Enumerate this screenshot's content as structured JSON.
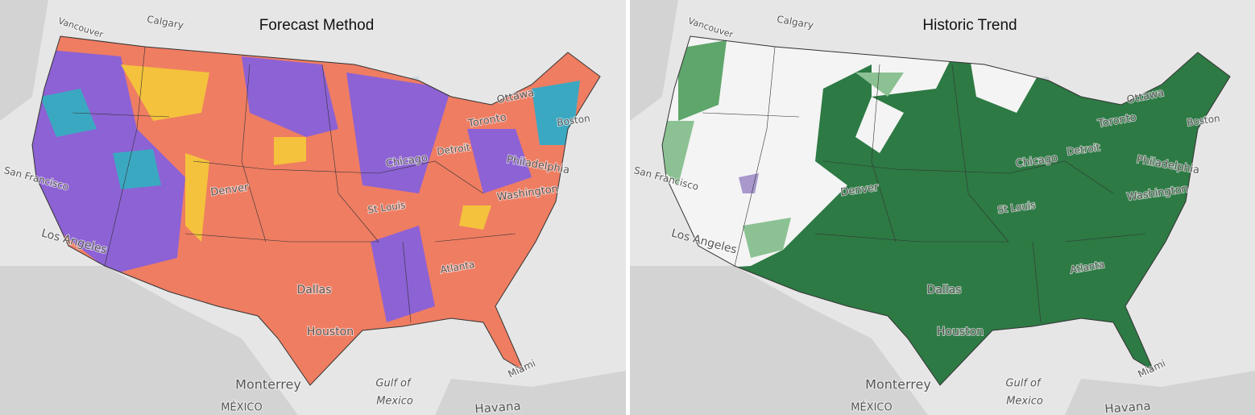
{
  "panels": [
    {
      "title": "Forecast Method",
      "labels": [
        "Vancouver",
        "Calgary",
        "Ottawa",
        "Toronto",
        "Boston",
        "Detroit",
        "Chicago",
        "Philadelphia",
        "Washington",
        "San Francisco",
        "Denver",
        "St Louis",
        "Los Angeles",
        "Atlanta",
        "Dallas",
        "Houston",
        "Monterrey",
        "Gulf of",
        "Mexico",
        "MÉXICO",
        "Havana",
        "Miami"
      ]
    },
    {
      "title": "Historic Trend",
      "labels": [
        "Vancouver",
        "Calgary",
        "Ottawa",
        "Toronto",
        "Boston",
        "Detroit",
        "Chicago",
        "Philadelphia",
        "Washington",
        "San Francisco",
        "Denver",
        "St Louis",
        "Los Angeles",
        "Atlanta",
        "Dallas",
        "Houston",
        "Monterrey",
        "Gulf of",
        "Mexico",
        "MÉXICO",
        "Havana",
        "Miami"
      ]
    }
  ]
}
